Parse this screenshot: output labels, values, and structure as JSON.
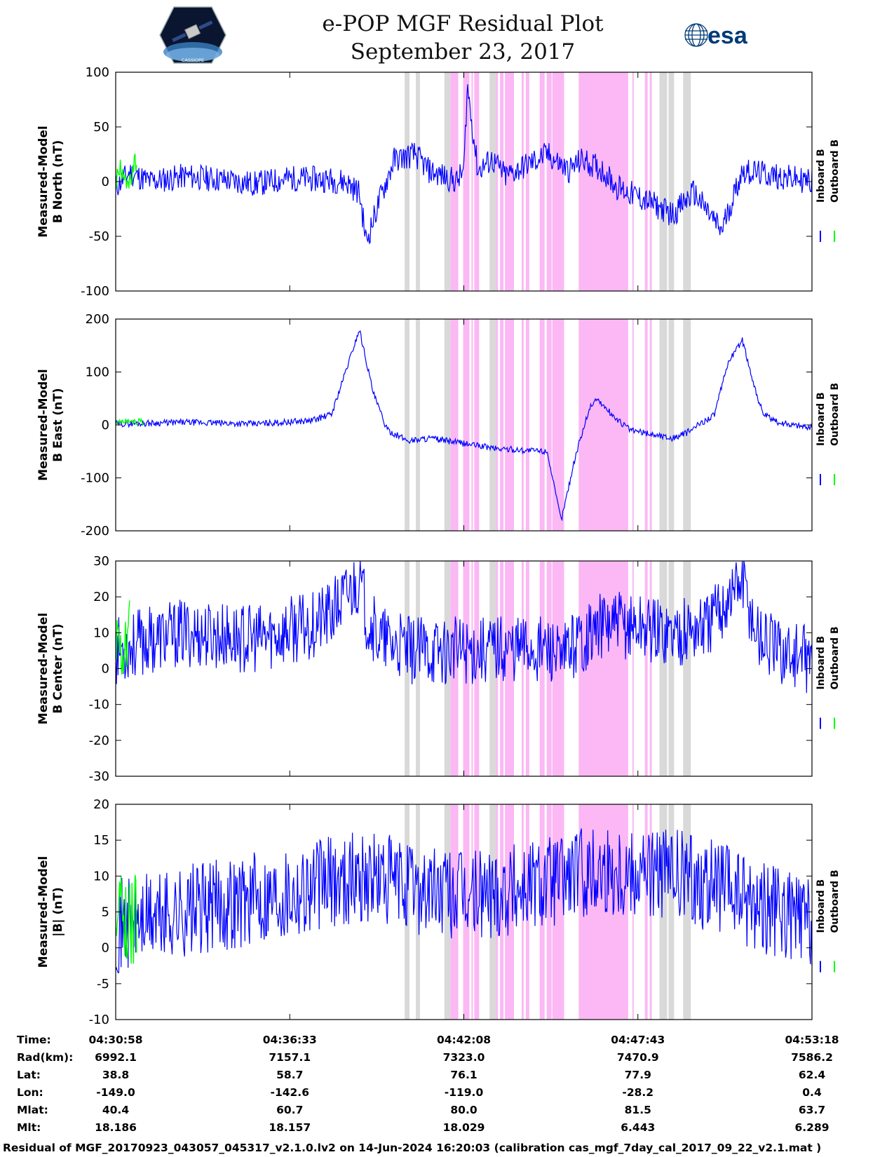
{
  "header": {
    "title_line1": "e-POP MGF Residual Plot",
    "title_line2": "September 23, 2017",
    "esa_logo_text": "esa",
    "cassiope_logo_text": "CASSIOPE"
  },
  "colors": {
    "inboard": "#0000ff",
    "outboard": "#00ff00",
    "shade_gray": "#d9d9d9",
    "shade_pink": "#fbb8f4",
    "esa_blue": "#003a78"
  },
  "chart_data": [
    {
      "type": "line",
      "ylabel_line1": "Measured-Model",
      "ylabel_line2": "B North (nT)",
      "ylim": [
        -100,
        100
      ],
      "yticks": [
        "100",
        "50",
        "0",
        "-50",
        "-100"
      ],
      "series": [
        {
          "name": "Inboard B",
          "x": [
            0,
            0.02,
            0.05,
            0.1,
            0.15,
            0.2,
            0.25,
            0.3,
            0.33,
            0.35,
            0.36,
            0.38,
            0.4,
            0.43,
            0.45,
            0.47,
            0.49,
            0.5,
            0.505,
            0.52,
            0.54,
            0.56,
            0.59,
            0.62,
            0.65,
            0.67,
            0.7,
            0.72,
            0.77,
            0.8,
            0.83,
            0.87,
            0.9,
            0.95,
            1.0
          ],
          "y": [
            -5,
            8,
            0,
            5,
            2,
            -2,
            3,
            2,
            0,
            -10,
            -55,
            -15,
            20,
            25,
            10,
            5,
            0,
            10,
            88,
            10,
            20,
            5,
            15,
            25,
            10,
            20,
            10,
            -5,
            -20,
            -30,
            -10,
            -45,
            10,
            5,
            0
          ]
        },
        {
          "name": "Outboard B",
          "x": [
            0,
            0.01,
            0.02,
            0.03
          ],
          "y": [
            0,
            15,
            -5,
            20
          ]
        }
      ],
      "legend": [
        "Inboard B",
        "Outboard B"
      ]
    },
    {
      "type": "line",
      "ylabel_line1": "Measured-Model",
      "ylabel_line2": "B East (nT)",
      "ylim": [
        -200,
        200
      ],
      "yticks": [
        "200",
        "100",
        "0",
        "-100",
        "-200"
      ],
      "series": [
        {
          "name": "Inboard B",
          "x": [
            0,
            0.1,
            0.2,
            0.28,
            0.31,
            0.33,
            0.35,
            0.37,
            0.39,
            0.42,
            0.45,
            0.5,
            0.55,
            0.62,
            0.63,
            0.64,
            0.66,
            0.68,
            0.69,
            0.72,
            0.74,
            0.78,
            0.8,
            0.82,
            0.86,
            0.88,
            0.9,
            0.92,
            0.93,
            0.95,
            1.0
          ],
          "y": [
            2,
            5,
            2,
            8,
            20,
            100,
            180,
            60,
            -10,
            -30,
            -25,
            -35,
            -45,
            -50,
            -120,
            -180,
            -60,
            30,
            50,
            10,
            -10,
            -20,
            -25,
            -15,
            20,
            120,
            160,
            60,
            20,
            5,
            -5
          ]
        },
        {
          "name": "Outboard B",
          "x": [
            0,
            0.02,
            0.04
          ],
          "y": [
            5,
            8,
            5
          ]
        }
      ],
      "legend": [
        "Inboard B",
        "Outboard B"
      ]
    },
    {
      "type": "line",
      "ylabel_line1": "Measured-Model",
      "ylabel_line2": "B Center (nT)",
      "ylim": [
        -30,
        30
      ],
      "yticks": [
        "30",
        "20",
        "10",
        "0",
        "-10",
        "-20",
        "-30"
      ],
      "series": [
        {
          "name": "Inboard B",
          "x": [
            0,
            0.05,
            0.1,
            0.2,
            0.28,
            0.31,
            0.33,
            0.35,
            0.36,
            0.38,
            0.42,
            0.5,
            0.55,
            0.6,
            0.63,
            0.64,
            0.65,
            0.7,
            0.75,
            0.8,
            0.85,
            0.88,
            0.9,
            0.92,
            0.95,
            1.0
          ],
          "y": [
            5,
            8,
            10,
            8,
            12,
            15,
            20,
            25,
            15,
            8,
            5,
            5,
            6,
            6,
            5,
            0,
            6,
            12,
            12,
            10,
            12,
            20,
            25,
            10,
            5,
            2
          ]
        },
        {
          "name": "Outboard B",
          "x": [
            0,
            0.01,
            0.02
          ],
          "y": [
            8,
            5,
            10
          ]
        }
      ],
      "legend": [
        "Inboard B",
        "Outboard B"
      ]
    },
    {
      "type": "line",
      "ylabel_line1": "Measured-Model",
      "ylabel_line2": "|B| (nT)",
      "ylim": [
        -10,
        20
      ],
      "yticks": [
        "20",
        "15",
        "10",
        "5",
        "0",
        "-5",
        "-10"
      ],
      "series": [
        {
          "name": "Inboard B",
          "x": [
            0,
            0.05,
            0.1,
            0.2,
            0.3,
            0.35,
            0.4,
            0.45,
            0.5,
            0.55,
            0.6,
            0.65,
            0.7,
            0.75,
            0.8,
            0.85,
            0.9,
            0.95,
            1.0
          ],
          "y": [
            3,
            4,
            5,
            7,
            9,
            10,
            9,
            8,
            7,
            8,
            9,
            10,
            11,
            11,
            10,
            9,
            7,
            5,
            3
          ]
        },
        {
          "name": "Outboard B",
          "x": [
            0,
            0.01,
            0.02,
            0.03
          ],
          "y": [
            3,
            4,
            3,
            4
          ]
        }
      ],
      "legend": [
        "Inboard B",
        "Outboard B"
      ]
    }
  ],
  "shaded_regions": {
    "gray": [
      [
        0.415,
        0.422
      ],
      [
        0.431,
        0.437
      ],
      [
        0.472,
        0.481
      ],
      [
        0.537,
        0.546
      ],
      [
        0.781,
        0.792
      ],
      [
        0.794,
        0.802
      ],
      [
        0.815,
        0.826
      ]
    ],
    "pink": [
      [
        0.481,
        0.492
      ],
      [
        0.499,
        0.508
      ],
      [
        0.511,
        0.513
      ],
      [
        0.515,
        0.522
      ],
      [
        0.546,
        0.549
      ],
      [
        0.552,
        0.557
      ],
      [
        0.559,
        0.572
      ],
      [
        0.583,
        0.586
      ],
      [
        0.589,
        0.594
      ],
      [
        0.609,
        0.616
      ],
      [
        0.619,
        0.626
      ],
      [
        0.627,
        0.644
      ],
      [
        0.665,
        0.736
      ],
      [
        0.742,
        0.744
      ],
      [
        0.76,
        0.764
      ],
      [
        0.767,
        0.77
      ]
    ]
  },
  "x_axis": {
    "ticks": [
      0,
      0.25,
      0.5,
      0.75,
      1.0
    ]
  },
  "table": {
    "row_labels": [
      "Time:",
      "Rad(km):",
      "Lat:",
      "Lon:",
      "Mlat:",
      "Mlt:"
    ],
    "columns": [
      [
        "04:30:58",
        "6992.1",
        "38.8",
        "-149.0",
        "40.4",
        "18.186"
      ],
      [
        "04:36:33",
        "7157.1",
        "58.7",
        "-142.6",
        "60.7",
        "18.157"
      ],
      [
        "04:42:08",
        "7323.0",
        "76.1",
        "-119.0",
        "80.0",
        "18.029"
      ],
      [
        "04:47:43",
        "7470.9",
        "77.9",
        "-28.2",
        "81.5",
        "6.443"
      ],
      [
        "04:53:18",
        "7586.2",
        "62.4",
        "0.4",
        "63.7",
        "6.289"
      ]
    ]
  },
  "footer": {
    "text": "Residual of MGF_20170923_043057_045317_v2.1.0.lv2 on 14-Jun-2024 16:20:03 (calibration cas_mgf_7day_cal_2017_09_22_v2.1.mat )"
  }
}
